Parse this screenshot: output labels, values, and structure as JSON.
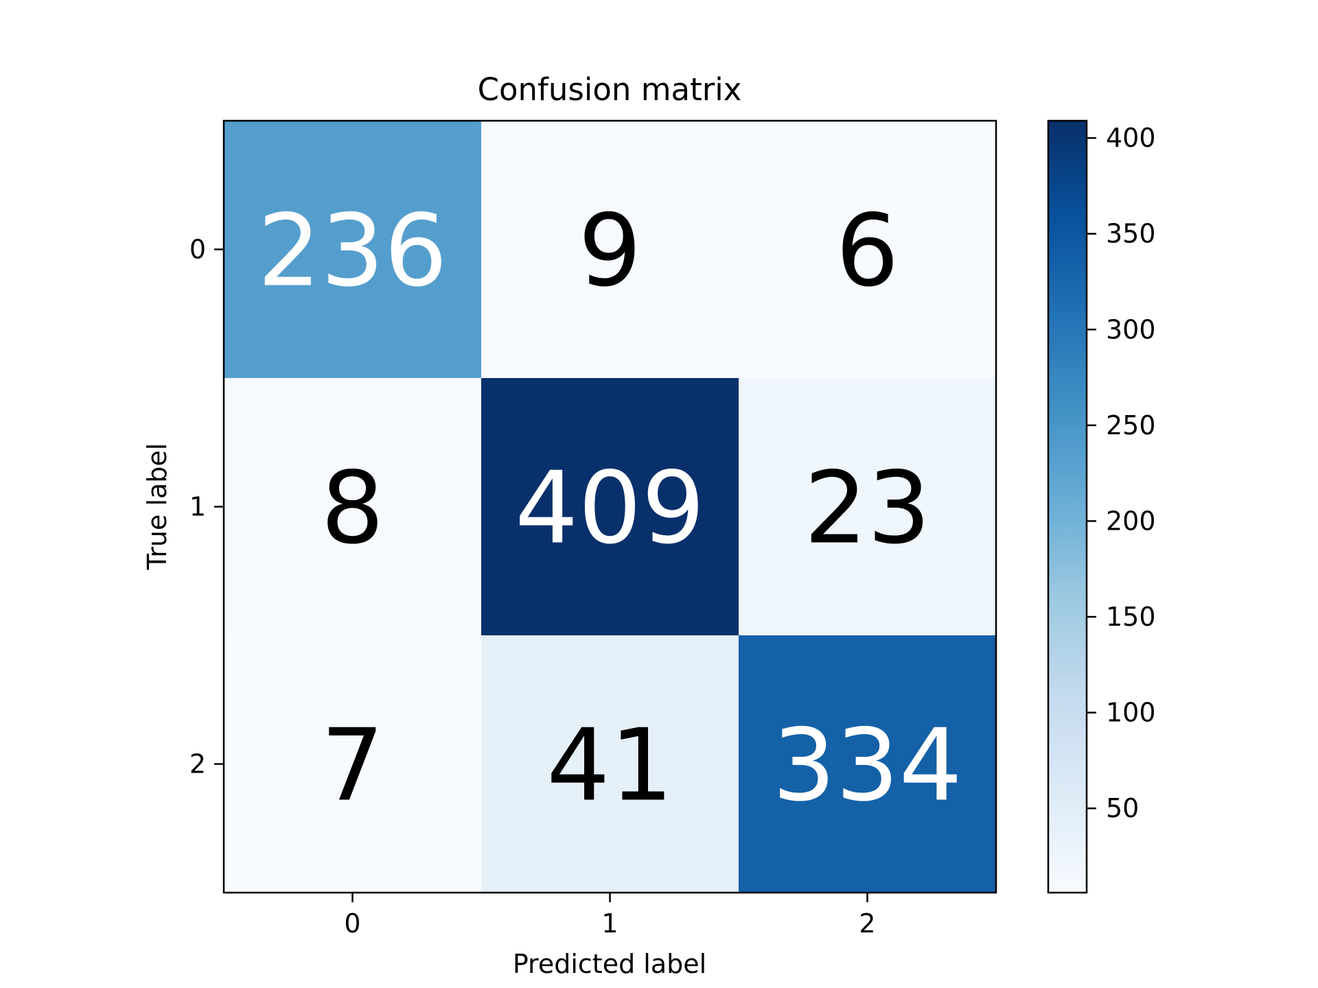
{
  "chart_data": {
    "type": "heatmap",
    "title": "Confusion matrix",
    "xlabel": "Predicted label",
    "ylabel": "True label",
    "x_categories": [
      "0",
      "1",
      "2"
    ],
    "y_categories": [
      "0",
      "1",
      "2"
    ],
    "values": [
      [
        236,
        9,
        6
      ],
      [
        8,
        409,
        23
      ],
      [
        7,
        41,
        334
      ]
    ],
    "colormap": "Blues",
    "value_range": [
      6,
      409
    ],
    "colorbar": {
      "ticks": [
        50,
        100,
        150,
        200,
        250,
        300,
        350,
        400
      ],
      "tick_labels": [
        "50",
        "100",
        "150",
        "200",
        "250",
        "300",
        "350",
        "400"
      ]
    },
    "grid": false
  }
}
